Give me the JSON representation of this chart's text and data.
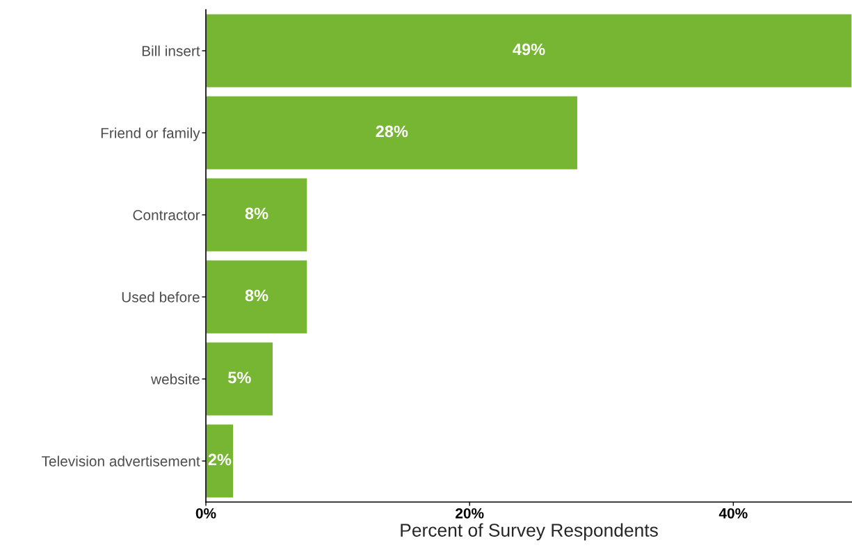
{
  "chart_data": {
    "type": "bar",
    "orientation": "horizontal",
    "xlabel": "Percent of Survey Respondents",
    "categories": [
      "Bill insert",
      "Friend or family",
      "Contractor",
      "Used before",
      "website",
      "Television advertisement"
    ],
    "values": [
      49,
      28.2,
      7.7,
      7.7,
      5.1,
      2.1
    ],
    "value_labels": [
      "49%",
      "28%",
      "8%",
      "8%",
      "5%",
      "2%"
    ],
    "color": "#76b632",
    "xlim": [
      0,
      49
    ],
    "xticks": [
      {
        "value": 0,
        "label": "0%"
      },
      {
        "value": 20,
        "label": "20%"
      },
      {
        "value": 40,
        "label": "40%"
      }
    ],
    "grid": false,
    "legend": false
  }
}
